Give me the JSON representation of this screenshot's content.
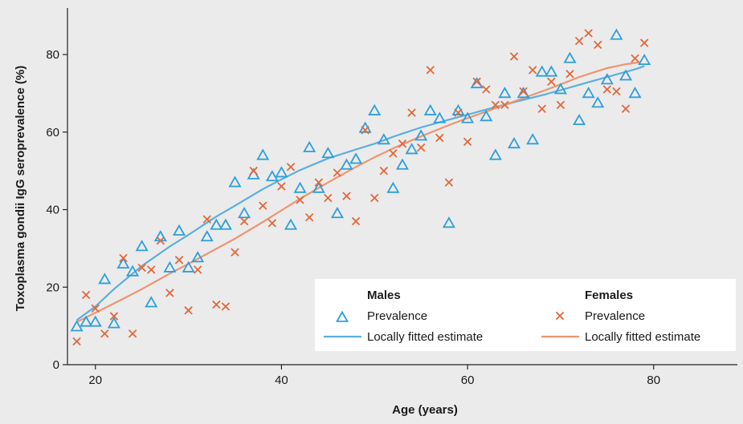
{
  "chart_data": {
    "type": "scatter",
    "xlabel": "Age (years)",
    "ylabel": "Toxoplasma gondii IgG seroprevalence (%)",
    "xlim": [
      17,
      89
    ],
    "ylim": [
      0,
      92
    ],
    "xticks": [
      20,
      40,
      60,
      80
    ],
    "yticks": [
      0,
      20,
      40,
      60,
      80
    ],
    "grid": false,
    "legend": {
      "placement": "bottom-right",
      "groups": [
        {
          "title": "Males",
          "marker_label": "Prevalence",
          "line_label": "Locally fitted estimate"
        },
        {
          "title": "Females",
          "marker_label": "Prevalence",
          "line_label": "Locally fitted estimate"
        }
      ]
    },
    "colors": {
      "males": "#2d9fd9",
      "females": "#e2683a",
      "males_fit": "#5aaee0",
      "females_fit": "#ec9570"
    },
    "series": [
      {
        "name": "Males",
        "marker": "triangle",
        "x": [
          18,
          19,
          20,
          21,
          22,
          23,
          24,
          25,
          26,
          27,
          28,
          29,
          30,
          31,
          32,
          33,
          34,
          35,
          36,
          37,
          38,
          39,
          40,
          41,
          42,
          43,
          44,
          45,
          46,
          47,
          48,
          49,
          50,
          51,
          52,
          53,
          54,
          55,
          56,
          57,
          58,
          59,
          60,
          61,
          62,
          63,
          64,
          65,
          66,
          67,
          68,
          69,
          70,
          71,
          72,
          73,
          74,
          75,
          76,
          77,
          78,
          79
        ],
        "y": [
          9.8,
          11,
          11,
          22,
          10.6,
          26,
          24,
          30.5,
          16,
          33,
          25,
          34.5,
          25,
          27.6,
          33,
          36,
          36,
          47,
          39,
          49,
          54,
          48.5,
          49.5,
          36,
          45.5,
          56,
          45.5,
          54.5,
          39,
          51.5,
          53,
          61,
          65.5,
          58,
          45.5,
          51.5,
          55.5,
          59,
          65.5,
          63.5,
          36.5,
          65.5,
          63.5,
          72.5,
          64,
          54,
          70,
          57,
          70,
          58,
          75.5,
          75.5,
          71,
          79,
          63,
          70,
          67.5,
          73.5,
          85,
          74.5,
          70,
          78.5
        ]
      },
      {
        "name": "Females",
        "marker": "cross",
        "x": [
          18,
          19,
          20,
          21,
          22,
          23,
          24,
          25,
          26,
          27,
          28,
          29,
          30,
          31,
          32,
          33,
          34,
          35,
          36,
          37,
          38,
          39,
          40,
          41,
          42,
          43,
          44,
          45,
          46,
          47,
          48,
          49,
          50,
          51,
          52,
          53,
          54,
          55,
          56,
          57,
          58,
          59,
          60,
          61,
          62,
          63,
          64,
          65,
          66,
          67,
          68,
          69,
          70,
          71,
          72,
          73,
          74,
          75,
          76,
          77,
          78,
          79
        ],
        "y": [
          6,
          18,
          14.5,
          8,
          12.5,
          27.5,
          8,
          25,
          24.5,
          32,
          18.5,
          27,
          14,
          24.5,
          37.5,
          15.5,
          15,
          29,
          37,
          50,
          41,
          36.5,
          46,
          51,
          42.5,
          38,
          47,
          43,
          49.5,
          43.5,
          37,
          60.5,
          43,
          50,
          54.5,
          57,
          65,
          56,
          76,
          58.5,
          47,
          65,
          57.5,
          73,
          71,
          67,
          67,
          79.5,
          70.5,
          76,
          66,
          73,
          67,
          75,
          83.5,
          85.5,
          82.5,
          71,
          70.5,
          66,
          79,
          83
        ]
      },
      {
        "name": "Males",
        "kind": "fit",
        "x": [
          18,
          20,
          22,
          25,
          28,
          30,
          33,
          35,
          38,
          40,
          42,
          45,
          48,
          50,
          52,
          55,
          58,
          60,
          62,
          65,
          68,
          70,
          72,
          75,
          78,
          79
        ],
        "y": [
          11.5,
          15,
          19.5,
          25.5,
          30.5,
          33.5,
          38.2,
          41,
          45.3,
          47.8,
          50.2,
          53.2,
          55.5,
          57,
          58.8,
          61.2,
          63.2,
          64.5,
          65.8,
          67.7,
          69.5,
          70.8,
          72.2,
          74.2,
          76.2,
          77
        ]
      },
      {
        "name": "Females",
        "kind": "fit",
        "x": [
          18,
          20,
          22,
          25,
          28,
          30,
          33,
          35,
          38,
          40,
          42,
          45,
          48,
          50,
          52,
          55,
          58,
          60,
          62,
          65,
          68,
          70,
          72,
          75,
          77,
          78.5
        ],
        "y": [
          11,
          13.4,
          15.8,
          19.5,
          23.5,
          26,
          29.9,
          32.5,
          36.8,
          39.8,
          42.8,
          47,
          51,
          53.5,
          55.8,
          58.9,
          61.8,
          63.6,
          65.3,
          67.9,
          70.5,
          72.3,
          74.2,
          76.5,
          77.5,
          78
        ]
      }
    ]
  }
}
